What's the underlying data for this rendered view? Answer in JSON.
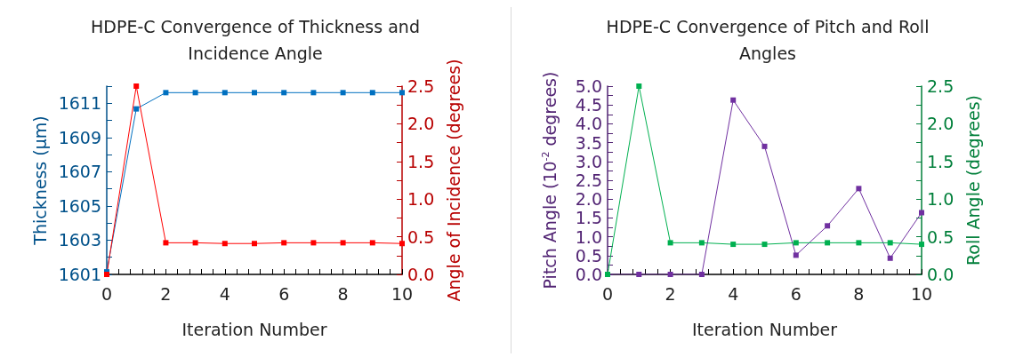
{
  "chart_data": [
    {
      "type": "line",
      "title": "HDPE-C Convergence of Thickness and\nIncidence Angle",
      "xlabel": "Iteration Number",
      "ylabel": "Thickness (µm)",
      "y2label": "Angle of Incidence (degrees)",
      "x": [
        0,
        1,
        2,
        3,
        4,
        5,
        6,
        7,
        8,
        9,
        10
      ],
      "series": [
        {
          "color": "#0070c0",
          "values": [
            1601.15,
            1610.67,
            1611.62,
            1611.62,
            1611.62,
            1611.62,
            1611.62,
            1611.62,
            1611.62,
            1611.62,
            1611.62
          ]
        },
        {
          "color": "#ff0000",
          "axis": "y2",
          "values": [
            0,
            2.5,
            0.42,
            0.42,
            0.41,
            0.41,
            0.42,
            0.42,
            0.42,
            0.42,
            0.41
          ]
        }
      ],
      "xlim": [
        0,
        10
      ],
      "xticks": [
        0,
        {
          "value": 0.4,
          "label": null
        },
        {
          "value": 0.8,
          "label": null
        },
        {
          "value": 1.2,
          "label": null
        },
        {
          "value": 1.6,
          "label": null
        },
        2,
        {
          "value": 2.4,
          "label": null
        },
        {
          "value": 2.8,
          "label": null
        },
        {
          "value": 3.2,
          "label": null
        },
        {
          "value": 3.6,
          "label": null
        },
        4,
        {
          "value": 4.4,
          "label": null
        },
        {
          "value": 4.8,
          "label": null
        },
        {
          "value": 5.2,
          "label": null
        },
        {
          "value": 5.6,
          "label": null
        },
        6,
        {
          "value": 6.4,
          "label": null
        },
        {
          "value": 6.8,
          "label": null
        },
        {
          "value": 7.2,
          "label": null
        },
        {
          "value": 7.6,
          "label": null
        },
        8,
        {
          "value": 8.4,
          "label": null
        },
        {
          "value": 8.8,
          "label": null
        },
        {
          "value": 9.2,
          "label": null
        },
        {
          "value": 9.6,
          "label": null
        },
        10
      ],
      "ylim": [
        1601,
        1612
      ],
      "yticks": [
        1601,
        {
          "value": 1602,
          "label": null
        },
        1603,
        {
          "value": 1604,
          "label": null
        },
        1605,
        {
          "value": 1606,
          "label": null
        },
        1607,
        {
          "value": 1608,
          "label": null
        },
        1609,
        {
          "value": 1610,
          "label": null
        },
        1611,
        {
          "value": 1612,
          "label": null
        }
      ],
      "y2lim": [
        0,
        2.5
      ],
      "y2ticks": [
        {
          "value": 0,
          "label": "0.0"
        },
        {
          "value": 0.25,
          "label": null
        },
        {
          "value": 0.5,
          "label": "0.5"
        },
        {
          "value": 0.75,
          "label": null
        },
        {
          "value": 1,
          "label": "1.0"
        },
        {
          "value": 1.25,
          "label": null
        },
        {
          "value": 1.5,
          "label": "1.5"
        },
        {
          "value": 1.75,
          "label": null
        },
        {
          "value": 2,
          "label": "2.0"
        },
        {
          "value": 2.25,
          "label": null
        },
        {
          "value": 2.5,
          "label": "2.5"
        }
      ],
      "marker": "square",
      "line_style": "solid",
      "grid": false
    },
    {
      "type": "line",
      "title": "HDPE-C Convergence of Pitch and Roll\nAngles",
      "xlabel": "Iteration Number",
      "ylabel": "Pitch Angle (10$^{-2}$ degrees)",
      "y2label": "Roll Angle (degrees)",
      "x": [
        0,
        1,
        2,
        3,
        4,
        5,
        6,
        7,
        8,
        9,
        10
      ],
      "series": [
        {
          "color": "#7030a0",
          "values": [
            0,
            0,
            0,
            0,
            4.63,
            3.4,
            0.51,
            1.29,
            2.28,
            0.43,
            1.64
          ]
        },
        {
          "color": "#00b050",
          "axis": "y2",
          "values": [
            0,
            2.5,
            0.42,
            0.42,
            0.4,
            0.4,
            0.42,
            0.42,
            0.42,
            0.42,
            0.4
          ]
        }
      ],
      "xlim": [
        0,
        10
      ],
      "xticks": [
        0,
        {
          "value": 0.4,
          "label": null
        },
        {
          "value": 0.8,
          "label": null
        },
        {
          "value": 1.2,
          "label": null
        },
        {
          "value": 1.6,
          "label": null
        },
        2,
        {
          "value": 2.4,
          "label": null
        },
        {
          "value": 2.8,
          "label": null
        },
        {
          "value": 3.2,
          "label": null
        },
        {
          "value": 3.6,
          "label": null
        },
        4,
        {
          "value": 4.4,
          "label": null
        },
        {
          "value": 4.8,
          "label": null
        },
        {
          "value": 5.2,
          "label": null
        },
        {
          "value": 5.6,
          "label": null
        },
        6,
        {
          "value": 6.4,
          "label": null
        },
        {
          "value": 6.8,
          "label": null
        },
        {
          "value": 7.2,
          "label": null
        },
        {
          "value": 7.6,
          "label": null
        },
        8,
        {
          "value": 8.4,
          "label": null
        },
        {
          "value": 8.8,
          "label": null
        },
        {
          "value": 9.2,
          "label": null
        },
        {
          "value": 9.6,
          "label": null
        },
        10
      ],
      "ylim": [
        0,
        5
      ],
      "yticks": [
        {
          "value": 0,
          "label": "0.0"
        },
        {
          "value": 0.25,
          "label": null
        },
        {
          "value": 0.5,
          "label": "0.5"
        },
        {
          "value": 0.75,
          "label": null
        },
        {
          "value": 1,
          "label": "1.0"
        },
        {
          "value": 1.25,
          "label": null
        },
        {
          "value": 1.5,
          "label": "1.5"
        },
        {
          "value": 1.75,
          "label": null
        },
        {
          "value": 2,
          "label": "2.0"
        },
        {
          "value": 2.25,
          "label": null
        },
        {
          "value": 2.5,
          "label": "2.5"
        },
        {
          "value": 2.75,
          "label": null
        },
        {
          "value": 3,
          "label": "3.0"
        },
        {
          "value": 3.25,
          "label": null
        },
        {
          "value": 3.5,
          "label": "3.5"
        },
        {
          "value": 3.75,
          "label": null
        },
        {
          "value": 4,
          "label": "4.0"
        },
        {
          "value": 4.25,
          "label": null
        },
        {
          "value": 4.5,
          "label": "4.5"
        },
        {
          "value": 4.75,
          "label": null
        },
        {
          "value": 5,
          "label": "5.0"
        }
      ],
      "y2lim": [
        0,
        2.5
      ],
      "y2ticks": [
        {
          "value": 0,
          "label": "0.0"
        },
        {
          "value": 0.25,
          "label": null
        },
        {
          "value": 0.5,
          "label": "0.5"
        },
        {
          "value": 0.75,
          "label": null
        },
        {
          "value": 1,
          "label": "1.0"
        },
        {
          "value": 1.25,
          "label": null
        },
        {
          "value": 1.5,
          "label": "1.5"
        },
        {
          "value": 1.75,
          "label": null
        },
        {
          "value": 2,
          "label": "2.0"
        },
        {
          "value": 2.25,
          "label": null
        },
        {
          "value": 2.5,
          "label": "2.5"
        }
      ],
      "marker": "square",
      "line_style": "solid",
      "grid": false
    }
  ]
}
